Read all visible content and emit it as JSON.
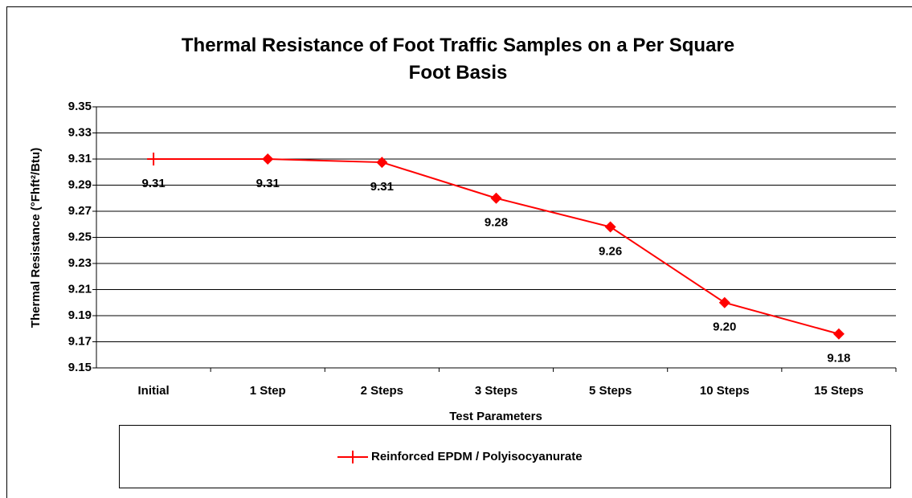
{
  "chart_data": {
    "type": "line",
    "title": "Thermal Resistance of Foot Traffic Samples on a Per Square Foot Basis",
    "x_label": "Test Parameters",
    "y_label": "Thermal Resistance (°Fhft²/Btu)",
    "categories": [
      "Initial",
      "1 Step",
      "2 Steps",
      "3 Steps",
      "5 Steps",
      "10 Steps",
      "15 Steps"
    ],
    "series": [
      {
        "name": "Reinforced EPDM / Polyisocyanurate",
        "color": "#ff0000",
        "values": [
          9.31,
          9.31,
          9.3075,
          9.28,
          9.258,
          9.2,
          9.176
        ],
        "value_labels": [
          "9.31",
          "9.31",
          "9.31",
          "9.28",
          "9.26",
          "9.20",
          "9.18"
        ]
      }
    ],
    "ylim": [
      9.15,
      9.35
    ],
    "yticks": [
      9.15,
      9.17,
      9.19,
      9.21,
      9.23,
      9.25,
      9.27,
      9.29,
      9.31,
      9.33,
      9.35
    ],
    "grid": true,
    "legend": "bottom"
  }
}
